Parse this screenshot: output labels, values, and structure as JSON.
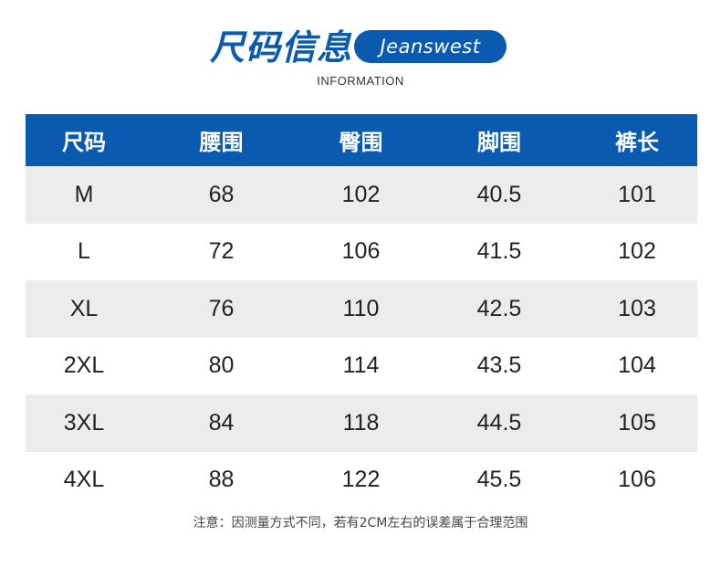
{
  "header": {
    "title": "尺码信息",
    "brand": "Jeanswest",
    "subtitle": "INFORMATION"
  },
  "table": {
    "columns": [
      "尺码",
      "腰围",
      "臀围",
      "脚围",
      "裤长"
    ],
    "rows": [
      [
        "M",
        "68",
        "102",
        "40.5",
        "101"
      ],
      [
        "L",
        "72",
        "106",
        "41.5",
        "102"
      ],
      [
        "XL",
        "76",
        "110",
        "42.5",
        "103"
      ],
      [
        "2XL",
        "80",
        "114",
        "43.5",
        "104"
      ],
      [
        "3XL",
        "84",
        "118",
        "44.5",
        "105"
      ],
      [
        "4XL",
        "88",
        "122",
        "45.5",
        "106"
      ]
    ]
  },
  "note": "注意：因测量方式不同，若有2CM左右的误差属于合理范围",
  "colors": {
    "accent": "#0a5bb0",
    "row_shade": "#ececec"
  }
}
